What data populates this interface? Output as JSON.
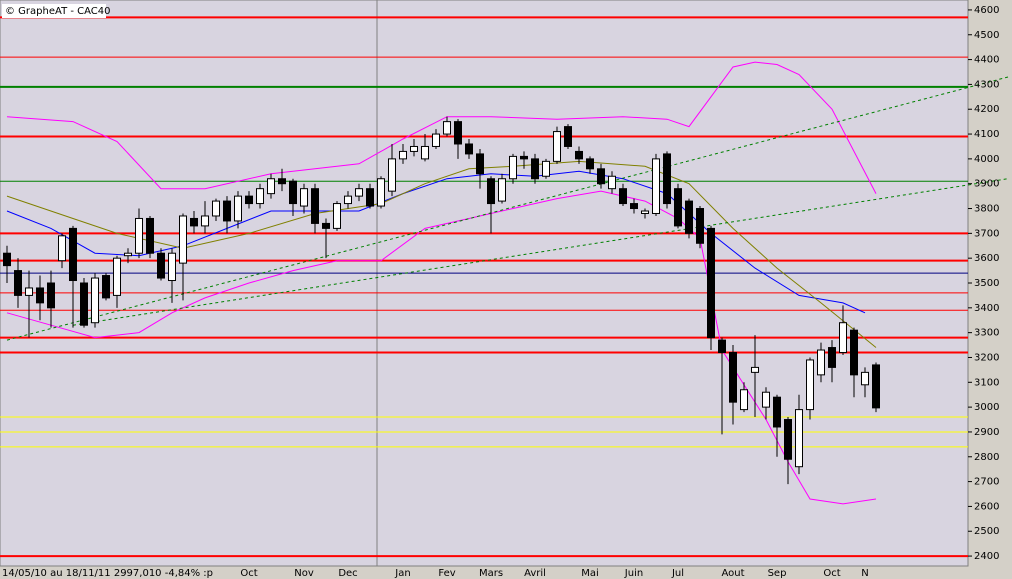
{
  "chart_data": {
    "type": "candlestick",
    "title": "© GrapheAT - CAC40",
    "footer": "14/05/10 au 18/11/11  2997,010  -4,84% :p",
    "categories": [
      null,
      null,
      null,
      null,
      null,
      null,
      null,
      null,
      null,
      null,
      null,
      null,
      null,
      null,
      null,
      null,
      null,
      null,
      null,
      null,
      null,
      null,
      "Oct",
      null,
      null,
      null,
      null,
      "Nov",
      null,
      null,
      null,
      "Dec",
      null,
      null,
      null,
      null,
      "Jan",
      null,
      null,
      null,
      "Fev",
      null,
      null,
      null,
      "Mars",
      null,
      null,
      null,
      "Avril",
      null,
      null,
      null,
      null,
      "Mai",
      null,
      null,
      null,
      "Juin",
      null,
      null,
      null,
      "Jul",
      null,
      null,
      null,
      null,
      "Aout",
      null,
      null,
      null,
      "Sep",
      null,
      null,
      null,
      null,
      "Oct",
      null,
      null,
      "N",
      null
    ],
    "open": [
      3620,
      3550,
      3450,
      3480,
      3500,
      3590,
      3720,
      3500,
      3340,
      3530,
      3450,
      3610,
      3620,
      3760,
      3620,
      3510,
      3580,
      3760,
      3730,
      3770,
      3830,
      3750,
      3850,
      3820,
      3860,
      3920,
      3910,
      3810,
      3880,
      3740,
      3720,
      3820,
      3850,
      3880,
      3810,
      3870,
      4000,
      4030,
      4000,
      4050,
      4100,
      4150,
      4060,
      4020,
      3920,
      3830,
      3920,
      4010,
      4000,
      3930,
      3990,
      4130,
      4030,
      4000,
      3960,
      3880,
      3880,
      3820,
      3780,
      3780,
      4020,
      3880,
      3830,
      3800,
      3720,
      3270,
      3220,
      2990,
      3140,
      3000,
      3040,
      2950,
      2760,
      2990,
      3130,
      3240,
      3220,
      3310,
      3090,
      3170
    ],
    "high": [
      3650,
      3600,
      3550,
      3530,
      3550,
      3700,
      3730,
      3520,
      3540,
      3540,
      3610,
      3640,
      3800,
      3770,
      3640,
      3640,
      3780,
      3790,
      3830,
      3840,
      3850,
      3870,
      3870,
      3900,
      3940,
      3960,
      3920,
      3900,
      3900,
      3760,
      3830,
      3870,
      3900,
      3900,
      3930,
      4060,
      4060,
      4080,
      4100,
      4120,
      4170,
      4160,
      4080,
      4040,
      3930,
      3940,
      4020,
      4030,
      4020,
      4000,
      4130,
      4140,
      4050,
      4010,
      3980,
      3950,
      3900,
      3840,
      3800,
      4020,
      4030,
      3900,
      3840,
      3810,
      3730,
      3280,
      3250,
      3100,
      3290,
      3080,
      3050,
      2960,
      3050,
      3200,
      3260,
      3270,
      3410,
      3320,
      3160,
      3180
    ],
    "low": [
      3500,
      3400,
      3280,
      3350,
      3320,
      3560,
      3320,
      3320,
      3320,
      3430,
      3400,
      3580,
      3600,
      3600,
      3510,
      3420,
      3430,
      3700,
      3700,
      3750,
      3700,
      3720,
      3800,
      3800,
      3840,
      3870,
      3770,
      3780,
      3700,
      3600,
      3710,
      3800,
      3830,
      3800,
      3800,
      3850,
      3980,
      4010,
      3990,
      4040,
      4090,
      4000,
      4000,
      3880,
      3700,
      3820,
      3900,
      3960,
      3900,
      3920,
      3980,
      4040,
      3980,
      3940,
      3880,
      3860,
      3810,
      3780,
      3760,
      3770,
      3800,
      3720,
      3680,
      3640,
      3230,
      2890,
      2930,
      2980,
      2960,
      2950,
      2800,
      2690,
      2730,
      2950,
      3100,
      3100,
      3210,
      3040,
      3040,
      2980
    ],
    "close": [
      3570,
      3450,
      3480,
      3420,
      3400,
      3690,
      3510,
      3330,
      3520,
      3440,
      3600,
      3620,
      3760,
      3620,
      3520,
      3620,
      3770,
      3730,
      3770,
      3830,
      3750,
      3850,
      3820,
      3880,
      3920,
      3900,
      3820,
      3880,
      3740,
      3720,
      3820,
      3850,
      3880,
      3810,
      3920,
      4000,
      4030,
      4050,
      4050,
      4100,
      4150,
      4060,
      4020,
      3940,
      3820,
      3920,
      4010,
      4000,
      3920,
      3990,
      4110,
      4050,
      4000,
      3960,
      3900,
      3930,
      3820,
      3800,
      3790,
      4000,
      3820,
      3730,
      3700,
      3660,
      3280,
      3220,
      3020,
      3070,
      3160,
      3060,
      2920,
      2790,
      2990,
      3190,
      3230,
      3160,
      3340,
      3130,
      3140,
      2997
    ],
    "up_color": "#ffffff",
    "down_color": "#000000",
    "overlays": [
      {
        "color": "#0000ff",
        "style": "solid",
        "x": [
          0,
          4,
          8,
          12,
          16,
          20,
          24,
          28,
          32,
          36,
          40,
          44,
          48,
          52,
          56,
          60,
          64,
          68,
          72,
          76,
          78
        ],
        "values": [
          3790,
          3720,
          3620,
          3610,
          3650,
          3720,
          3790,
          3790,
          3790,
          3860,
          3920,
          3940,
          3930,
          3950,
          3920,
          3860,
          3700,
          3560,
          3450,
          3420,
          3380
        ]
      },
      {
        "color": "#808000",
        "style": "solid",
        "x": [
          0,
          6,
          10,
          16,
          22,
          28,
          34,
          38,
          42,
          46,
          52,
          58,
          62,
          66,
          70,
          74,
          79
        ],
        "values": [
          3850,
          3760,
          3700,
          3640,
          3700,
          3780,
          3820,
          3900,
          3960,
          3970,
          3990,
          3970,
          3900,
          3720,
          3560,
          3420,
          3240
        ]
      },
      {
        "color": "#ff00ff",
        "style": "solid",
        "x": [
          0,
          6,
          10,
          14,
          18,
          24,
          28,
          32,
          36,
          40,
          44,
          50,
          56,
          60,
          62,
          64,
          66,
          68,
          70,
          72,
          75,
          79
        ],
        "values": [
          4170,
          4150,
          4070,
          3880,
          3880,
          3940,
          3960,
          3980,
          4080,
          4170,
          4170,
          4160,
          4170,
          4160,
          4130,
          4250,
          4370,
          4390,
          4380,
          4340,
          4200,
          3860
        ]
      },
      {
        "color": "#ff00ff",
        "style": "solid",
        "x": [
          0,
          4,
          8,
          12,
          15,
          18,
          22,
          26,
          30,
          34,
          38,
          42,
          46,
          50,
          54,
          58,
          61,
          63,
          65,
          67,
          69,
          71,
          73,
          76,
          79
        ],
        "values": [
          3380,
          3330,
          3280,
          3300,
          3380,
          3440,
          3500,
          3550,
          3590,
          3590,
          3720,
          3760,
          3800,
          3840,
          3870,
          3830,
          3760,
          3680,
          3230,
          3090,
          2950,
          2780,
          2630,
          2610,
          2630
        ]
      },
      {
        "color": "#008000",
        "style": "dashed",
        "x": [
          0,
          91
        ],
        "values": [
          3270,
          4330
        ]
      },
      {
        "color": "#008000",
        "style": "dashed",
        "x": [
          6,
          91
        ],
        "values": [
          3330,
          3920
        ]
      }
    ],
    "hlines": [
      {
        "value": 4570,
        "color": "#ff0000",
        "width": 2
      },
      {
        "value": 4410,
        "color": "#ff0000",
        "width": 1
      },
      {
        "value": 4290,
        "color": "#008000",
        "width": 2
      },
      {
        "value": 4090,
        "color": "#ff0000",
        "width": 2
      },
      {
        "value": 3910,
        "color": "#008000",
        "width": 1
      },
      {
        "value": 3700,
        "color": "#ff0000",
        "width": 2
      },
      {
        "value": 3590,
        "color": "#ff0000",
        "width": 2
      },
      {
        "value": 3540,
        "color": "#000080",
        "width": 1
      },
      {
        "value": 3460,
        "color": "#ff0000",
        "width": 1
      },
      {
        "value": 3390,
        "color": "#ff0000",
        "width": 1
      },
      {
        "value": 3280,
        "color": "#ff0000",
        "width": 2
      },
      {
        "value": 3220,
        "color": "#ff0000",
        "width": 2
      },
      {
        "value": 2960,
        "color": "#ffff00",
        "width": 1
      },
      {
        "value": 2900,
        "color": "#ffff00",
        "width": 1
      },
      {
        "value": 2840,
        "color": "#ffff00",
        "width": 1
      },
      {
        "value": 2400,
        "color": "#ff0000",
        "width": 2
      }
    ],
    "ylim": [
      2360,
      4640
    ],
    "yticks": [
      2400,
      2500,
      2600,
      2700,
      2800,
      2900,
      3000,
      3100,
      3200,
      3300,
      3400,
      3500,
      3600,
      3700,
      3800,
      3900,
      4000,
      4100,
      4200,
      4300,
      4400,
      4500,
      4600
    ]
  }
}
